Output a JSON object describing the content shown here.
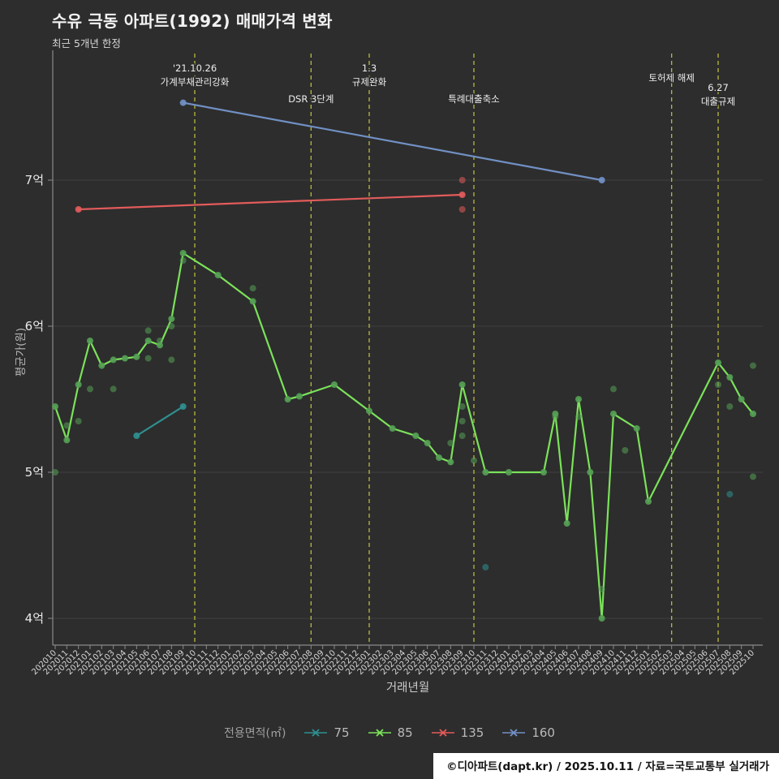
{
  "title": "수유 극동 아파트(1992) 매매가격 변화",
  "subtitle": "최근 5개년 한정",
  "y_axis": {
    "label": "평균가(원)",
    "ticks": [
      {
        "label": "4억",
        "value": 4
      },
      {
        "label": "5억",
        "value": 5
      },
      {
        "label": "6억",
        "value": 6
      },
      {
        "label": "7억",
        "value": 7
      }
    ]
  },
  "x_axis": {
    "label": "거래년월",
    "ticks": [
      "202010",
      "202011",
      "202012",
      "202101",
      "202102",
      "202103",
      "202104",
      "202105",
      "202106",
      "202107",
      "202108",
      "202109",
      "202110",
      "202111",
      "202112",
      "202201",
      "202202",
      "202203",
      "202204",
      "202205",
      "202206",
      "202207",
      "202208",
      "202209",
      "202210",
      "202211",
      "202212",
      "202301",
      "202302",
      "202303",
      "202304",
      "202305",
      "202306",
      "202307",
      "202308",
      "202309",
      "202310",
      "202311",
      "202312",
      "202401",
      "202402",
      "202403",
      "202404",
      "202405",
      "202406",
      "202407",
      "202408",
      "202409",
      "202410",
      "202411",
      "202412",
      "202501",
      "202502",
      "202503",
      "202504",
      "202505",
      "202506",
      "202507",
      "202508",
      "202509",
      "202510"
    ]
  },
  "legend": {
    "title": "전용면적(㎡)",
    "items": [
      {
        "label": "75",
        "color": "#2f9090"
      },
      {
        "label": "85",
        "color": "#7be25a"
      },
      {
        "label": "135",
        "color": "#e35b5b"
      },
      {
        "label": "160",
        "color": "#7190c4"
      }
    ]
  },
  "footer": {
    "text": "©디아파트(dapt.kr) / 2025.10.11 / 자료=국토교통부 실거래가"
  },
  "colors": {
    "background": "#2d2d2d",
    "grid": "#3e3e3e",
    "axis": "#8a8a8a",
    "tick_text": "#d4d4d4",
    "event_line": "#b9b93f",
    "annotation_text": "#ededed"
  },
  "chart_data": {
    "type": "line",
    "title": "수유 극동 아파트(1992) 매매가격 변화",
    "subtitle": "최근 5개년 한정",
    "xlabel": "거래년월",
    "ylabel": "평균가(원)",
    "y_unit": "억원",
    "ylim": [
      3.82,
      7.87
    ],
    "grid": "horizontal",
    "legend_position": "bottom",
    "events": [
      {
        "month": "202110",
        "label_lines": [
          "'21.10.26",
          "가계부채관리강화"
        ],
        "label_y": 88
      },
      {
        "month": "202208",
        "label_lines": [
          "DSR 3단계"
        ],
        "label_y": 126
      },
      {
        "month": "202301",
        "label_lines": [
          "1.3",
          "규제완화"
        ],
        "label_y": 88
      },
      {
        "month": "202310",
        "label_lines": [
          "특례대출축소"
        ],
        "label_y": 126
      },
      {
        "month": "202503",
        "label_lines": [
          "토허제 해제"
        ],
        "label_y": 100
      },
      {
        "month": "202507",
        "label_lines": [
          "6.27",
          "대출규제"
        ],
        "label_y": 112
      }
    ],
    "series": [
      {
        "name": "75",
        "color": "#2f9090",
        "marker_color": "#2f9090",
        "line": [
          [
            "202105",
            5.25
          ],
          [
            "202109",
            5.45
          ]
        ],
        "scatter": [
          [
            "202311",
            4.35
          ],
          [
            "202508",
            4.85
          ]
        ]
      },
      {
        "name": "85",
        "color": "#7be25a",
        "marker_color": "#55a055",
        "line": [
          [
            "202010",
            5.45
          ],
          [
            "202011",
            5.22
          ],
          [
            "202012",
            5.6
          ],
          [
            "202101",
            5.9
          ],
          [
            "202102",
            5.73
          ],
          [
            "202103",
            5.77
          ],
          [
            "202104",
            5.78
          ],
          [
            "202105",
            5.79
          ],
          [
            "202106",
            5.9
          ],
          [
            "202107",
            5.87
          ],
          [
            "202108",
            6.05
          ],
          [
            "202109",
            6.5
          ],
          [
            "202112",
            6.35
          ],
          [
            "202203",
            6.17
          ],
          [
            "202206",
            5.5
          ],
          [
            "202207",
            5.52
          ],
          [
            "202210",
            5.6
          ],
          [
            "202301",
            5.42
          ],
          [
            "202303",
            5.3
          ],
          [
            "202305",
            5.25
          ],
          [
            "202306",
            5.2
          ],
          [
            "202307",
            5.1
          ],
          [
            "202308",
            5.07
          ],
          [
            "202309",
            5.6
          ],
          [
            "202311",
            5.0
          ],
          [
            "202401",
            5.0
          ],
          [
            "202404",
            5.0
          ],
          [
            "202405",
            5.4
          ],
          [
            "202406",
            4.65
          ],
          [
            "202407",
            5.5
          ],
          [
            "202408",
            5.0
          ],
          [
            "202409",
            4.0
          ],
          [
            "202410",
            5.4
          ],
          [
            "202412",
            5.3
          ],
          [
            "202501",
            4.8
          ],
          [
            "202507",
            5.75
          ],
          [
            "202508",
            5.65
          ],
          [
            "202509",
            5.5
          ],
          [
            "202510",
            5.4
          ]
        ],
        "scatter": [
          [
            "202010",
            5.0
          ],
          [
            "202011",
            5.32
          ],
          [
            "202012",
            5.35
          ],
          [
            "202101",
            5.57
          ],
          [
            "202103",
            5.57
          ],
          [
            "202106",
            5.97
          ],
          [
            "202106",
            5.78
          ],
          [
            "202107",
            5.9
          ],
          [
            "202108",
            5.77
          ],
          [
            "202108",
            6.0
          ],
          [
            "202109",
            6.45
          ],
          [
            "202203",
            6.26
          ],
          [
            "202308",
            5.2
          ],
          [
            "202309",
            5.45
          ],
          [
            "202309",
            5.35
          ],
          [
            "202309",
            5.25
          ],
          [
            "202310",
            5.08
          ],
          [
            "202405",
            5.38
          ],
          [
            "202407",
            5.38
          ],
          [
            "202409",
            4.2
          ],
          [
            "202410",
            5.57
          ],
          [
            "202411",
            5.15
          ],
          [
            "202507",
            5.6
          ],
          [
            "202508",
            5.45
          ],
          [
            "202510",
            5.73
          ],
          [
            "202510",
            4.97
          ]
        ]
      },
      {
        "name": "135",
        "color": "#e35b5b",
        "marker_color": "#e35b5b",
        "line": [
          [
            "202012",
            6.8
          ],
          [
            "202309",
            6.9
          ]
        ],
        "scatter": [
          [
            "202309",
            7.0
          ],
          [
            "202309",
            6.8
          ]
        ]
      },
      {
        "name": "160",
        "color": "#7190c4",
        "marker_color": "#7190c4",
        "line": [
          [
            "202109",
            7.53
          ],
          [
            "202409",
            7.0
          ]
        ],
        "scatter": []
      }
    ]
  }
}
